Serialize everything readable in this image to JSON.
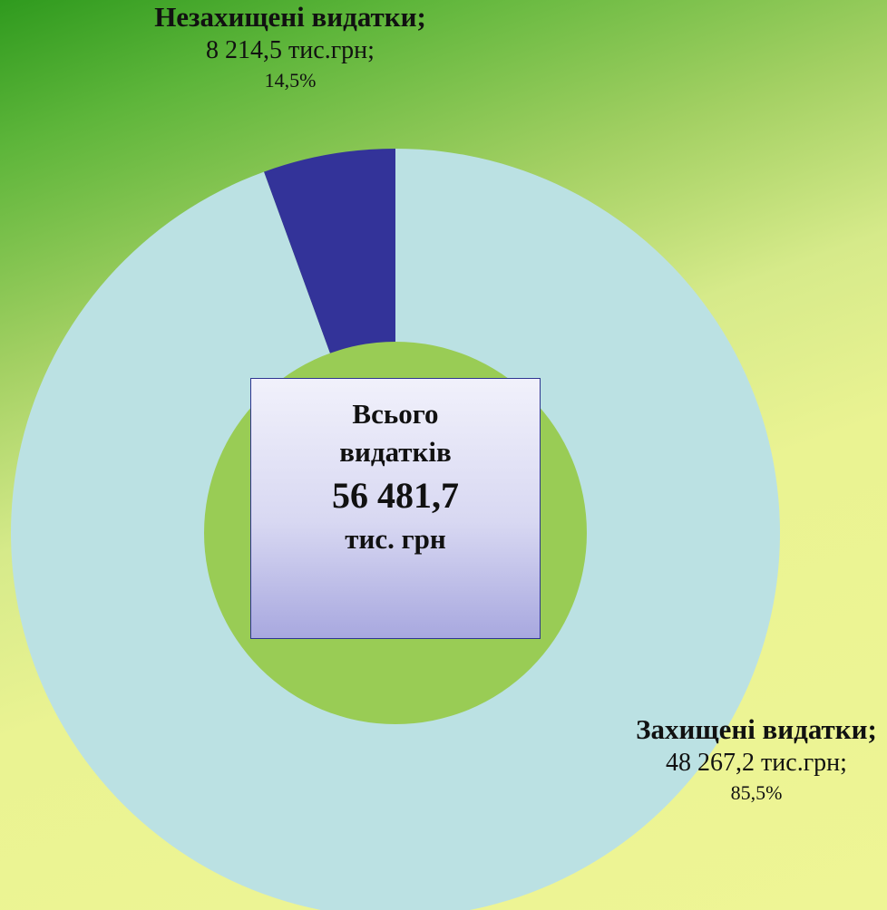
{
  "chart_data": {
    "type": "pie",
    "subtype": "doughnut",
    "slices": [
      {
        "name": "Незахищені видатки;",
        "value_label": "8 214,5 тис.грн;",
        "percent_label": "14,5%",
        "value": 8214.5,
        "percent": 14.5,
        "color": "#333399"
      },
      {
        "name": "Захищені видатки;",
        "value_label": "48 267,2 тис.грн;",
        "percent_label": "85,5%",
        "value": 48267.2,
        "percent": 85.5,
        "color": "#bbe1e3"
      }
    ],
    "center_text": [
      "Всього",
      "видатків",
      "56 481,7",
      "тис. грн"
    ],
    "total": 56481.7,
    "hole_color": "#99cc55"
  }
}
